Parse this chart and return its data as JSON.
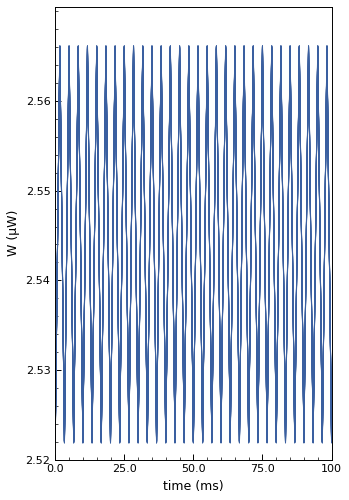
{
  "title": "",
  "xlabel": "time (ms)",
  "ylabel": "W (µW)",
  "xlim": [
    0.0,
    100
  ],
  "ylim": [
    2.52,
    2.5705
  ],
  "xticks": [
    0.0,
    25.0,
    50.0,
    75.0,
    100
  ],
  "yticks": [
    2.52,
    2.53,
    2.54,
    2.55,
    2.56
  ],
  "line_color": "#3a5fa0",
  "line_alpha": 0.7,
  "line_width": 0.7,
  "num_cycles": 30,
  "t_total": 100,
  "y_min": 2.522,
  "y_max": 2.566,
  "num_traces": 20,
  "figsize": [
    3.49,
    5.0
  ],
  "dpi": 100
}
